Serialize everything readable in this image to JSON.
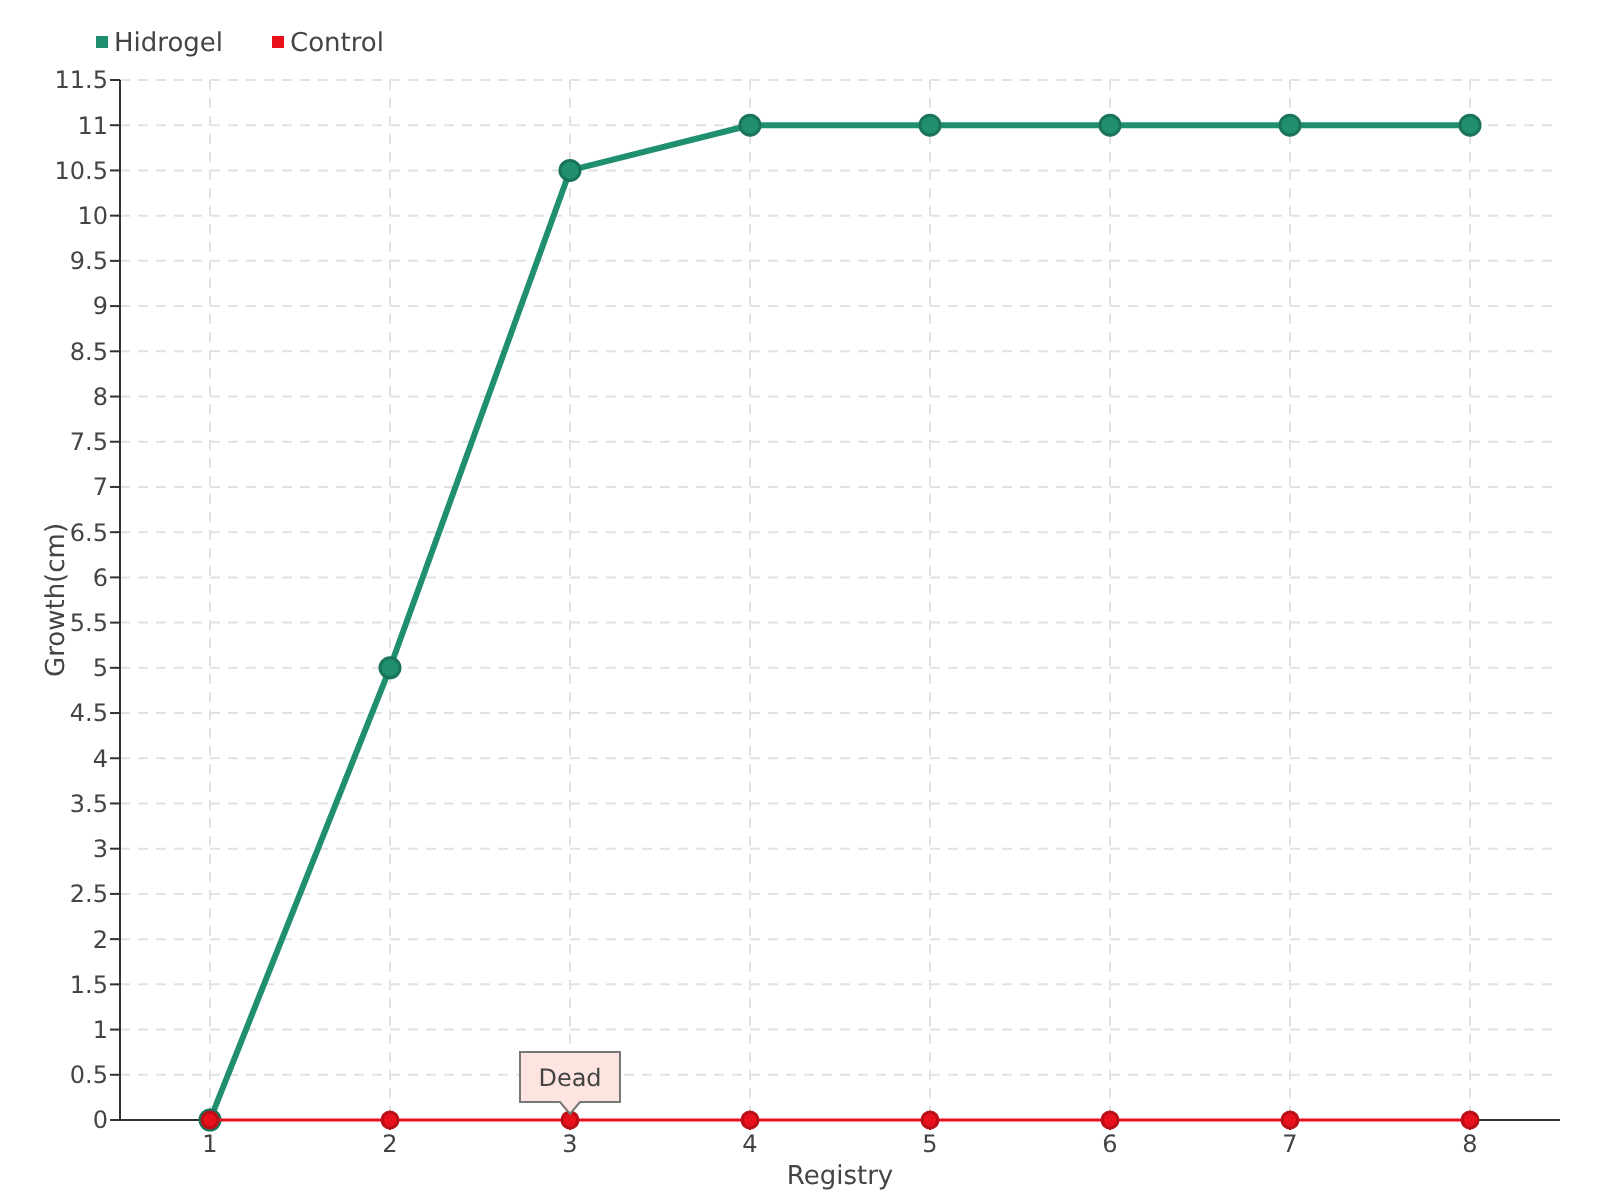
{
  "chart_data": {
    "type": "line",
    "xlabel": "Registry",
    "ylabel": "Growth(cm)",
    "x": [
      1,
      2,
      3,
      4,
      5,
      6,
      7,
      8
    ],
    "xlim": [
      0.5,
      8.5
    ],
    "xticks": [
      1,
      2,
      3,
      4,
      5,
      6,
      7,
      8
    ],
    "ylim": [
      0,
      11.5
    ],
    "yticks": [
      0,
      0.5,
      1,
      1.5,
      2,
      2.5,
      3,
      3.5,
      4,
      4.5,
      5,
      5.5,
      6,
      6.5,
      7,
      7.5,
      8,
      8.5,
      9,
      9.5,
      10,
      10.5,
      11,
      11.5
    ],
    "series": [
      {
        "name": "Hidrogel",
        "color": "#1f8f6f",
        "values": [
          0,
          5,
          10.5,
          11,
          11,
          11,
          11,
          11
        ]
      },
      {
        "name": "Control",
        "color": "#e8101a",
        "values": [
          0,
          0,
          0,
          0,
          0,
          0,
          0,
          0
        ]
      }
    ],
    "annotations": [
      {
        "text": "Dead",
        "x": 3,
        "y": 0
      }
    ],
    "grid": true,
    "legend": "top left",
    "marker": "circle",
    "line_style": "solid"
  }
}
